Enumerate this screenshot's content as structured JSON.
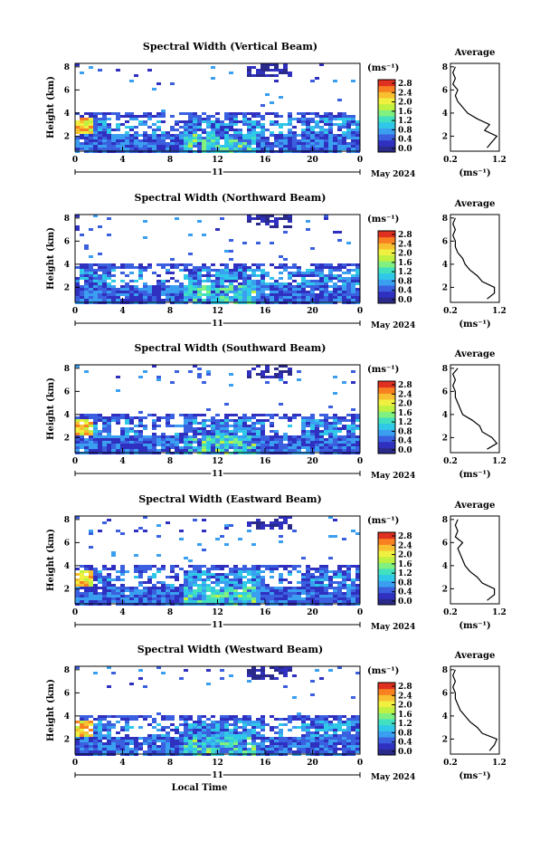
{
  "colors": [
    "#2a2a8a",
    "#3030c0",
    "#3a60e0",
    "#3a9ff0",
    "#30c8e8",
    "#40e0c0",
    "#80f080",
    "#c0f040",
    "#f0f040",
    "#f8c030",
    "#f88020",
    "#e03020"
  ],
  "shared": {
    "ylabel": "Height (km)",
    "yticks": [
      "2",
      "4",
      "6",
      "8"
    ],
    "xticks": [
      "0",
      "4",
      "8",
      "12",
      "16",
      "20",
      "0"
    ],
    "day_label": "11",
    "month_year": "May 2024",
    "xlabel": "Local Time",
    "unit": "(ms⁻¹)",
    "colorbar_ticks": [
      "0.0",
      "0.4",
      "0.8",
      "1.2",
      "1.6",
      "2.0",
      "2.4",
      "2.8"
    ],
    "avg_title": "Average",
    "avg_xticks": [
      "0.2",
      "1.2"
    ],
    "avg_xlabel": "(ms⁻¹)",
    "avg_yticks": [
      "2",
      "4",
      "6",
      "8"
    ]
  },
  "chart_data": [
    {
      "type": "heatmap",
      "title": "Spectral Width (Vertical Beam)",
      "x_range_hours": [
        0,
        24
      ],
      "y_range_km": [
        0.7,
        8.3
      ],
      "color_range": [
        0.0,
        2.8
      ],
      "average_profile": {
        "height_km": [
          1.0,
          1.5,
          2.0,
          2.5,
          3.0,
          3.5,
          4.0,
          4.5,
          5.0,
          5.5,
          6.0,
          6.5,
          7.0,
          7.5,
          8.0
        ],
        "width_ms": [
          0.95,
          1.05,
          1.15,
          0.9,
          1.0,
          0.75,
          0.55,
          0.45,
          0.35,
          0.3,
          0.35,
          0.25,
          0.3,
          0.25,
          0.3
        ]
      }
    },
    {
      "type": "heatmap",
      "title": "Spectral Width (Northward Beam)",
      "x_range_hours": [
        0,
        24
      ],
      "y_range_km": [
        0.7,
        8.3
      ],
      "color_range": [
        0.0,
        2.8
      ],
      "average_profile": {
        "height_km": [
          1.0,
          1.5,
          2.0,
          2.5,
          3.0,
          3.5,
          4.0,
          4.5,
          5.0,
          5.5,
          6.0,
          6.5,
          7.0,
          7.5,
          8.0
        ],
        "width_ms": [
          0.95,
          1.1,
          1.1,
          0.85,
          0.75,
          0.6,
          0.5,
          0.45,
          0.35,
          0.3,
          0.3,
          0.25,
          0.3,
          0.25,
          0.3
        ]
      }
    },
    {
      "type": "heatmap",
      "title": "Spectral Width (Southward Beam)",
      "x_range_hours": [
        0,
        24
      ],
      "y_range_km": [
        0.7,
        8.3
      ],
      "color_range": [
        0.0,
        2.8
      ],
      "average_profile": {
        "height_km": [
          1.0,
          1.5,
          2.0,
          2.5,
          3.0,
          3.5,
          4.0,
          4.5,
          5.0,
          5.5,
          6.0,
          6.5,
          7.0,
          7.5,
          8.0
        ],
        "width_ms": [
          0.95,
          1.15,
          1.05,
          0.85,
          0.8,
          0.65,
          0.45,
          0.4,
          0.35,
          0.3,
          0.3,
          0.25,
          0.3,
          0.25,
          0.35
        ]
      }
    },
    {
      "type": "heatmap",
      "title": "Spectral Width (Eastward Beam)",
      "x_range_hours": [
        0,
        24
      ],
      "y_range_km": [
        0.7,
        8.3
      ],
      "color_range": [
        0.0,
        2.8
      ],
      "average_profile": {
        "height_km": [
          1.0,
          1.5,
          2.0,
          2.5,
          3.0,
          3.5,
          4.0,
          4.5,
          5.0,
          5.5,
          6.0,
          6.5,
          7.0,
          7.5,
          8.0
        ],
        "width_ms": [
          0.95,
          1.1,
          1.1,
          0.85,
          0.75,
          0.6,
          0.5,
          0.45,
          0.4,
          0.35,
          0.45,
          0.3,
          0.35,
          0.3,
          0.35
        ]
      }
    },
    {
      "type": "heatmap",
      "title": "Spectral Width (Westward Beam)",
      "x_range_hours": [
        0,
        24
      ],
      "y_range_km": [
        0.7,
        8.3
      ],
      "color_range": [
        0.0,
        2.8
      ],
      "average_profile": {
        "height_km": [
          1.0,
          1.5,
          2.0,
          2.5,
          3.0,
          3.5,
          4.0,
          4.5,
          5.0,
          5.5,
          6.0,
          6.5,
          7.0,
          7.5,
          8.0
        ],
        "width_ms": [
          1.0,
          1.1,
          1.15,
          0.85,
          0.75,
          0.6,
          0.5,
          0.4,
          0.35,
          0.3,
          0.3,
          0.25,
          0.3,
          0.25,
          0.3
        ]
      }
    }
  ]
}
